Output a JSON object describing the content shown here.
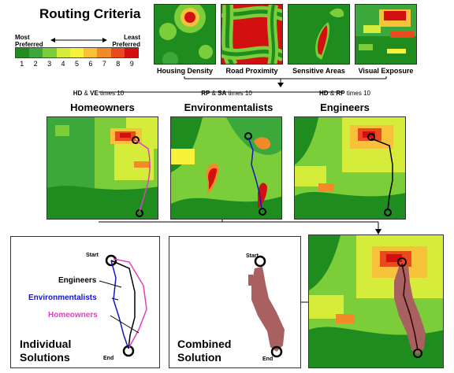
{
  "title": "Routing Criteria",
  "legend": {
    "most": "Most Preferred",
    "least": "Least Preferred",
    "ticks": [
      "1",
      "2",
      "3",
      "4",
      "5",
      "6",
      "7",
      "8",
      "9"
    ],
    "colors": [
      "#1f8c1f",
      "#3aa83a",
      "#7ccd3a",
      "#d6ec3a",
      "#f7f23a",
      "#f7c23a",
      "#f28a2a",
      "#e84a1e",
      "#d21010"
    ]
  },
  "criteria": [
    {
      "label": "Housing Density"
    },
    {
      "label": "Road Proximity"
    },
    {
      "label": "Sensitive Areas"
    },
    {
      "label": "Visual Exposure"
    }
  ],
  "groups": [
    {
      "abbr1": "HD",
      "amp": "&",
      "abbr2": "VE",
      "suffix": "times 10",
      "name": "Homeowners"
    },
    {
      "abbr1": "RP",
      "amp": "&",
      "abbr2": "SA",
      "suffix": "times 10",
      "name": "Environmentalists"
    },
    {
      "abbr1": "HD",
      "amp": "&",
      "abbr2": "RP",
      "suffix": "times 10",
      "name": "Engineers"
    }
  ],
  "individual": {
    "start": "Start",
    "end": "End",
    "engineers": "Engineers",
    "environmentalists": "Environmentalists",
    "homeowners": "Homeowners",
    "title_line1": "Individual",
    "title_line2": "Solutions"
  },
  "combined": {
    "start": "Start",
    "end": "End",
    "title_line1": "Combined",
    "title_line2": "Solution"
  },
  "colors": {
    "engineers": "#000000",
    "environmentalists": "#1515c8",
    "homeowners": "#e040c0",
    "corridor": "#a86060"
  }
}
